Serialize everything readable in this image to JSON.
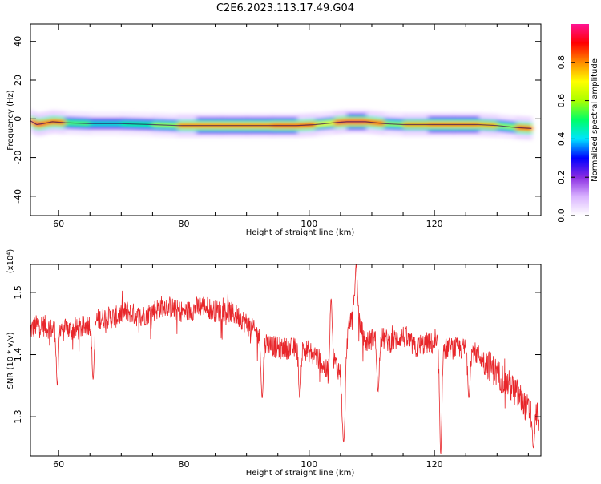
{
  "title": "C2E6.2023.113.17.49.G04",
  "chart_data": [
    {
      "type": "heatmap",
      "xlabel": "Height of straight line (km)",
      "ylabel": "Frequency (Hz)",
      "xlim": [
        55.5,
        137
      ],
      "ylim": [
        -50,
        49
      ],
      "x_ticks": [
        60,
        80,
        100,
        120
      ],
      "y_ticks": [
        -40,
        -20,
        0,
        20,
        40
      ],
      "colorbar": {
        "label": "Normalized spectral amplitude",
        "range": [
          0,
          1
        ],
        "ticks": [
          0.0,
          0.2,
          0.4,
          0.6,
          0.8
        ],
        "colors": [
          "#ffffff",
          "#d9b3ff",
          "#8a2be2",
          "#0000ff",
          "#00e5ff",
          "#00ff66",
          "#aaff00",
          "#ffff00",
          "#ff8c00",
          "#ff0000",
          "#ff1493"
        ]
      },
      "ridge": [
        {
          "x": 55.5,
          "f": -1.0,
          "a": 0.55
        },
        {
          "x": 56.5,
          "f": -3.0,
          "a": 0.95
        },
        {
          "x": 57.5,
          "f": -2.5,
          "a": 0.5
        },
        {
          "x": 59.0,
          "f": -1.5,
          "a": 0.9
        },
        {
          "x": 61.0,
          "f": -2.0,
          "a": 0.55
        },
        {
          "x": 65.0,
          "f": -2.5,
          "a": 0.45
        },
        {
          "x": 70.0,
          "f": -2.5,
          "a": 0.45
        },
        {
          "x": 75.0,
          "f": -3.0,
          "a": 0.5
        },
        {
          "x": 79.0,
          "f": -3.5,
          "a": 0.6
        },
        {
          "x": 82.0,
          "f": -3.5,
          "a": 0.85
        },
        {
          "x": 86.0,
          "f": -3.5,
          "a": 0.85
        },
        {
          "x": 90.0,
          "f": -3.5,
          "a": 0.8
        },
        {
          "x": 94.0,
          "f": -3.5,
          "a": 0.85
        },
        {
          "x": 98.0,
          "f": -3.5,
          "a": 0.9
        },
        {
          "x": 101.0,
          "f": -3.0,
          "a": 0.55
        },
        {
          "x": 104.0,
          "f": -2.0,
          "a": 0.7
        },
        {
          "x": 106.0,
          "f": -1.5,
          "a": 0.95
        },
        {
          "x": 109.0,
          "f": -1.5,
          "a": 0.9
        },
        {
          "x": 112.0,
          "f": -2.5,
          "a": 0.55
        },
        {
          "x": 115.0,
          "f": -3.0,
          "a": 0.6
        },
        {
          "x": 119.0,
          "f": -3.0,
          "a": 0.8
        },
        {
          "x": 123.0,
          "f": -3.0,
          "a": 0.85
        },
        {
          "x": 127.0,
          "f": -3.0,
          "a": 0.8
        },
        {
          "x": 130.0,
          "f": -3.5,
          "a": 0.6
        },
        {
          "x": 133.0,
          "f": -4.5,
          "a": 0.6
        },
        {
          "x": 135.5,
          "f": -5.0,
          "a": 0.9
        }
      ]
    },
    {
      "type": "line",
      "xlabel": "Height of straight line (km)",
      "ylabel": "SNR (10 * v/v)",
      "yscale_label": "(x10⁴)",
      "xlim": [
        55.5,
        137
      ],
      "ylim": [
        1.237,
        1.545
      ],
      "x_ticks": [
        60,
        80,
        100,
        120
      ],
      "y_ticks": [
        1.3,
        1.4,
        1.5
      ],
      "series": [
        {
          "color": "#e8262a",
          "x": [
            55.5,
            57,
            59,
            60,
            61,
            63,
            65,
            67,
            69,
            71,
            73,
            75,
            77,
            79,
            81,
            83,
            85,
            87,
            89,
            91,
            93,
            95,
            97,
            99,
            101,
            103,
            104,
            105,
            105.5,
            106,
            107,
            108,
            109,
            111,
            113,
            115,
            117,
            119,
            121,
            123,
            125,
            127,
            129,
            131,
            133,
            135,
            136.5
          ],
          "y": [
            1.44,
            1.45,
            1.44,
            1.45,
            1.44,
            1.44,
            1.45,
            1.46,
            1.46,
            1.47,
            1.46,
            1.47,
            1.48,
            1.47,
            1.47,
            1.48,
            1.47,
            1.47,
            1.46,
            1.44,
            1.42,
            1.41,
            1.41,
            1.41,
            1.4,
            1.37,
            1.39,
            1.37,
            1.3,
            1.42,
            1.48,
            1.45,
            1.42,
            1.43,
            1.42,
            1.43,
            1.41,
            1.42,
            1.41,
            1.41,
            1.41,
            1.4,
            1.38,
            1.36,
            1.34,
            1.31,
            1.3
          ]
        }
      ],
      "events": [
        {
          "x": 59.8,
          "y": 1.35
        },
        {
          "x": 65.5,
          "y": 1.36
        },
        {
          "x": 92.5,
          "y": 1.33
        },
        {
          "x": 98.5,
          "y": 1.33
        },
        {
          "x": 103.5,
          "y": 1.49
        },
        {
          "x": 105.5,
          "y": 1.26
        },
        {
          "x": 107.5,
          "y": 1.545
        },
        {
          "x": 111.0,
          "y": 1.34
        },
        {
          "x": 121.0,
          "y": 1.24
        },
        {
          "x": 125.5,
          "y": 1.33
        },
        {
          "x": 135.8,
          "y": 1.25
        }
      ]
    }
  ]
}
